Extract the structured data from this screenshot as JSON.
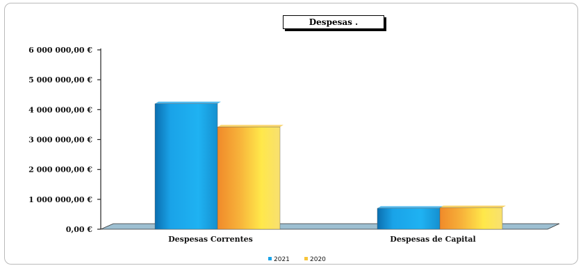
{
  "chart_data": {
    "type": "bar",
    "title": "Despesas .",
    "categories": [
      "Despesas Correntes",
      "Despesas de Capital"
    ],
    "series": [
      {
        "name": "2021",
        "values": [
          4200000,
          700000
        ],
        "color": "#1aa3e8"
      },
      {
        "name": "2020",
        "values": [
          3420000,
          720000
        ],
        "color": "#f7c53a"
      }
    ],
    "ylim": [
      0,
      6000000
    ],
    "yticks": [
      "0,00 €",
      "1 000 000,00 €",
      "2 000 000,00 €",
      "3 000 000,00 €",
      "4 000 000,00 €",
      "5 000 000,00 €",
      "6 000 000,00 €"
    ],
    "legend_position": "bottom"
  }
}
